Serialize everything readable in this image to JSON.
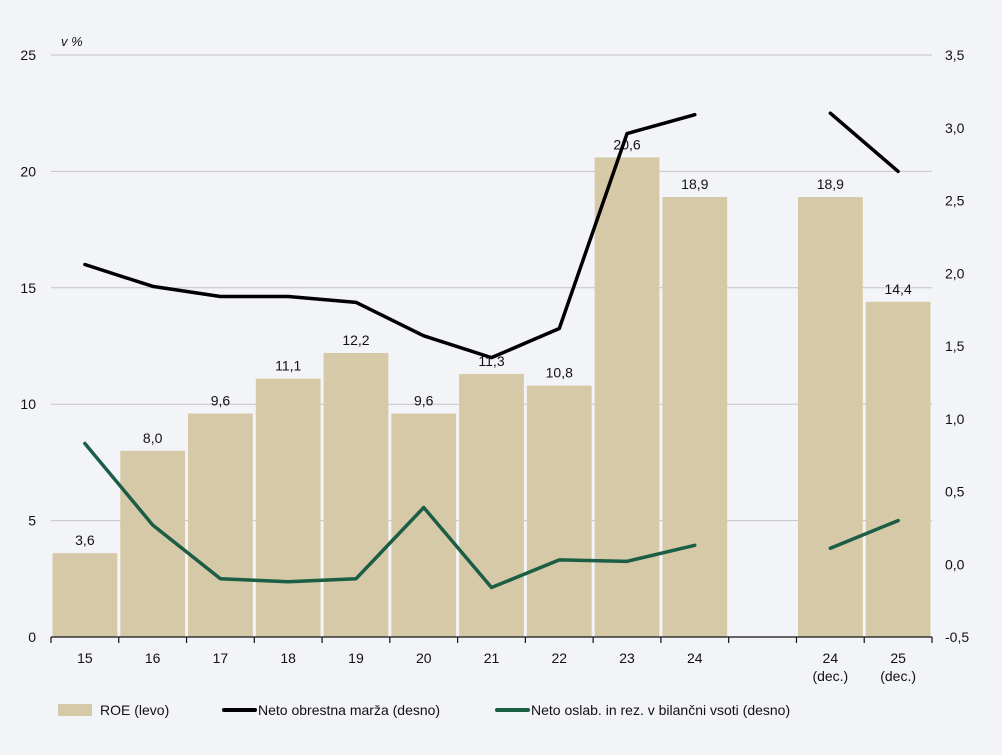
{
  "chart_data": {
    "type": "bar+line",
    "unit_label": "v %",
    "categories": [
      "15",
      "16",
      "17",
      "18",
      "19",
      "20",
      "21",
      "22",
      "23",
      "24",
      "",
      "24\n(dec.)",
      "25\n(dec.)"
    ],
    "category_lines": [
      [
        "15"
      ],
      [
        "16"
      ],
      [
        "17"
      ],
      [
        "18"
      ],
      [
        "19"
      ],
      [
        "20"
      ],
      [
        "21"
      ],
      [
        "22"
      ],
      [
        "23"
      ],
      [
        "24"
      ],
      [],
      [
        "24",
        "(dec.)"
      ],
      [
        "25",
        "(dec.)"
      ]
    ],
    "left_axis": {
      "min": 0,
      "max": 25,
      "ticks": [
        "0",
        "5",
        "10",
        "15",
        "20",
        "25"
      ],
      "tick_values": [
        0,
        5,
        10,
        15,
        20,
        25
      ]
    },
    "right_axis": {
      "min": -0.5,
      "max": 3.5,
      "ticks": [
        "-0,5",
        "0,0",
        "0,5",
        "1,0",
        "1,5",
        "2,0",
        "2,5",
        "3,0",
        "3,5"
      ],
      "tick_values": [
        -0.5,
        0,
        0.5,
        1,
        1.5,
        2,
        2.5,
        3,
        3.5
      ]
    },
    "grid": true,
    "legend_position": "bottom",
    "series": [
      {
        "name": "ROE (levo)",
        "type": "bar",
        "axis": "left",
        "color": "#d6c9a7",
        "values": [
          3.6,
          8.0,
          9.6,
          11.1,
          12.2,
          9.6,
          11.3,
          10.8,
          20.6,
          18.9,
          null,
          18.9,
          14.4
        ],
        "labels": [
          "3,6",
          "8,0",
          "9,6",
          "11,1",
          "12,2",
          "9,6",
          "11,3",
          "10,8",
          "20,6",
          "18,9",
          "",
          "18,9",
          "14,4"
        ]
      },
      {
        "name": "Neto obrestna marža (desno)",
        "type": "line",
        "axis": "right",
        "color": "#000000",
        "values": [
          2.06,
          1.91,
          1.84,
          1.84,
          1.8,
          1.57,
          1.42,
          1.62,
          2.96,
          3.09,
          null,
          3.1,
          2.7
        ]
      },
      {
        "name": "Neto oslab. in rez. v bilančni vsoti (desno)",
        "type": "line",
        "axis": "right",
        "color": "#1b5e45",
        "values": [
          0.83,
          0.27,
          -0.1,
          -0.12,
          -0.1,
          0.39,
          -0.16,
          0.03,
          0.02,
          0.13,
          null,
          0.11,
          0.3
        ]
      }
    ]
  }
}
